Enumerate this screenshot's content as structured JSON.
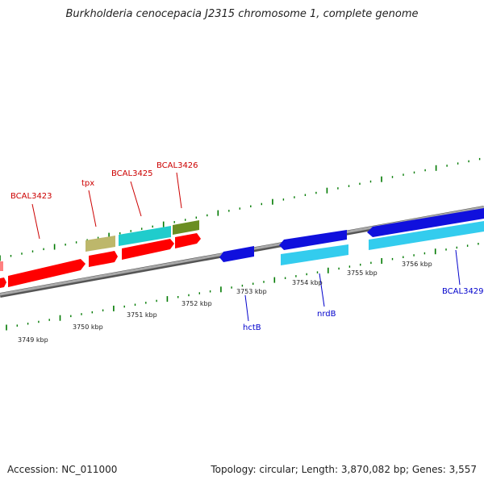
{
  "title": "Burkholderia cenocepacia J2315 chromosome 1, complete genome",
  "footer": {
    "accession": "Accession: NC_011000",
    "summary": "Topology: circular; Length: 3,870,082 bp; Genes: 3,557"
  },
  "colors": {
    "forward_label": "#cc0000",
    "reverse_label": "#0000cc",
    "tick": "#007a00",
    "axis": "#888888"
  },
  "kbp_ticks": [
    "3749 kbp",
    "3750 kbp",
    "3751 kbp",
    "3752 kbp",
    "3753 kbp",
    "3754 kbp",
    "3755 kbp",
    "3756 kbp"
  ],
  "genes": [
    {
      "label": "BCAL3423",
      "color": "#ff0000",
      "strand": "forward",
      "icon": "gene-arrow"
    },
    {
      "label": "tpx",
      "color": "#ff0000",
      "strand": "forward",
      "icon": "gene-arrow"
    },
    {
      "label": "BCAL3425",
      "color": "#ff0000",
      "strand": "forward",
      "icon": "gene-arrow"
    },
    {
      "label": "BCAL3426",
      "color": "#ff0000",
      "strand": "forward",
      "icon": "gene-arrow"
    },
    {
      "label": "hctB",
      "color": "#0000ff",
      "strand": "reverse",
      "icon": "gene-arrow"
    },
    {
      "label": "nrdB",
      "color": "#0000ff",
      "strand": "reverse",
      "icon": "gene-arrow"
    },
    {
      "label": "BCAL3429",
      "color": "#0000ff",
      "strand": "reverse",
      "icon": "gene-arrow"
    }
  ]
}
